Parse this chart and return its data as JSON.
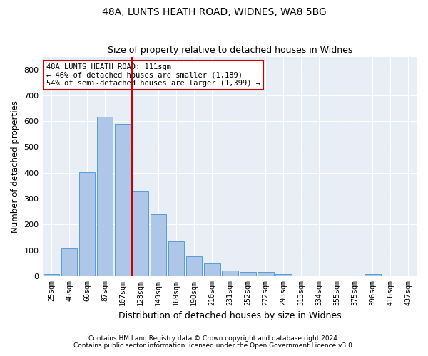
{
  "title1": "48A, LUNTS HEATH ROAD, WIDNES, WA8 5BG",
  "title2": "Size of property relative to detached houses in Widnes",
  "xlabel": "Distribution of detached houses by size in Widnes",
  "ylabel": "Number of detached properties",
  "footer1": "Contains HM Land Registry data © Crown copyright and database right 2024.",
  "footer2": "Contains public sector information licensed under the Open Government Licence v3.0.",
  "bar_labels": [
    "25sqm",
    "46sqm",
    "66sqm",
    "87sqm",
    "107sqm",
    "128sqm",
    "149sqm",
    "169sqm",
    "190sqm",
    "210sqm",
    "231sqm",
    "252sqm",
    "272sqm",
    "293sqm",
    "313sqm",
    "334sqm",
    "355sqm",
    "375sqm",
    "396sqm",
    "416sqm",
    "437sqm"
  ],
  "bar_values": [
    8,
    107,
    402,
    617,
    590,
    330,
    238,
    134,
    77,
    49,
    21,
    15,
    15,
    8,
    0,
    0,
    0,
    0,
    8,
    0,
    0
  ],
  "bar_color": "#aec6e8",
  "bar_edgecolor": "#5b9bd5",
  "marker_label": "48A LUNTS HEATH ROAD: 111sqm",
  "annotation_line1": "← 46% of detached houses are smaller (1,189)",
  "annotation_line2": "54% of semi-detached houses are larger (1,399) →",
  "vline_color": "#cc0000",
  "annotation_box_edgecolor": "#cc0000",
  "vline_x": 4.5,
  "ylim": [
    0,
    850
  ],
  "yticks": [
    0,
    100,
    200,
    300,
    400,
    500,
    600,
    700,
    800
  ],
  "background_color": "#e8eef5",
  "figsize": [
    6.0,
    5.0
  ],
  "dpi": 100
}
